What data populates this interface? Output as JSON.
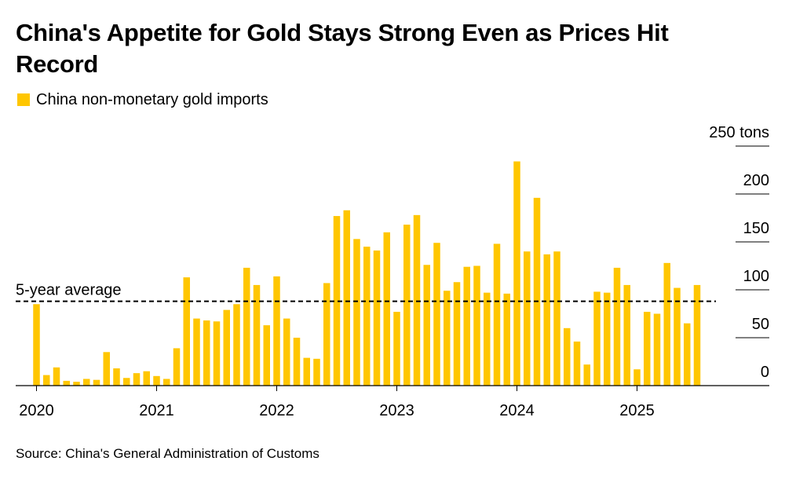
{
  "title": "China's Appetite for Gold Stays Strong Even as Prices Hit Record",
  "legend": {
    "label": "China non-monetary gold imports"
  },
  "source": "Source: China's General Administration of Customs",
  "colors": {
    "bar": "#ffc600",
    "grid": "#000000",
    "avg_line": "#000000"
  },
  "chart_data": {
    "type": "bar",
    "title": "China's Appetite for Gold Stays Strong Even as Prices Hit Record",
    "series_name": "China non-monetary gold imports",
    "unit": "tons",
    "ylim": [
      0,
      250
    ],
    "yticks": [
      0,
      50,
      100,
      150,
      200,
      250
    ],
    "ytick_labels": [
      "0",
      "50",
      "100",
      "150",
      "200",
      "250 tons"
    ],
    "xtick_labels": [
      "2020",
      "2021",
      "2022",
      "2023",
      "2024",
      "2025"
    ],
    "start": "2020-01",
    "average": {
      "label": "5-year average",
      "value": 88
    },
    "values": [
      85,
      11,
      19,
      5,
      4,
      7,
      6,
      35,
      18,
      8,
      13,
      15,
      10,
      7,
      39,
      113,
      70,
      68,
      67,
      79,
      85,
      123,
      105,
      63,
      114,
      70,
      50,
      29,
      28,
      107,
      177,
      183,
      153,
      145,
      141,
      160,
      77,
      168,
      178,
      126,
      149,
      99,
      108,
      124,
      125,
      97,
      148,
      96,
      234,
      140,
      196,
      137,
      140,
      60,
      46,
      22,
      98,
      97,
      123,
      105,
      17,
      77,
      75,
      128,
      102,
      65,
      105
    ]
  }
}
